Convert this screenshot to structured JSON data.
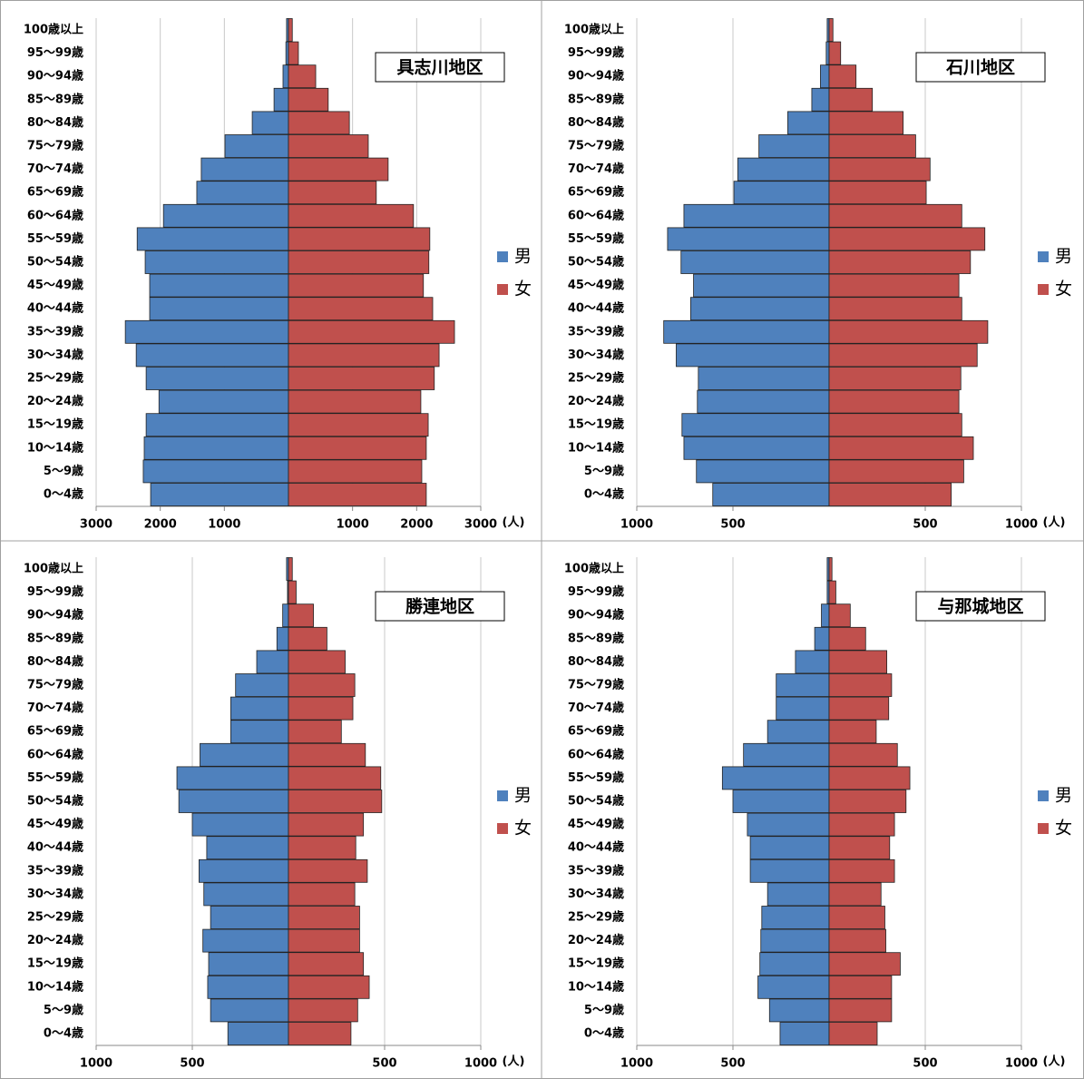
{
  "chart_data": [
    {
      "type": "pyramid",
      "title": "具志川地区",
      "categories": [
        "100歳以上",
        "95～99歳",
        "90～94歳",
        "85～89歳",
        "80～84歳",
        "75～79歳",
        "70～74歳",
        "65～69歳",
        "60～64歳",
        "55～59歳",
        "50～54歳",
        "45～49歳",
        "40～44歳",
        "35～39歳",
        "30～34歳",
        "25～29歳",
        "20～24歳",
        "15～19歳",
        "10～14歳",
        "5～9歳",
        "0～4歳"
      ],
      "series": [
        {
          "name": "男",
          "color": "#4f81bd",
          "values": [
            30,
            40,
            85,
            225,
            565,
            990,
            1360,
            1430,
            1950,
            2360,
            2235,
            2165,
            2165,
            2545,
            2375,
            2220,
            2020,
            2220,
            2250,
            2265,
            2150
          ]
        },
        {
          "name": "女",
          "color": "#c0504d",
          "values": [
            60,
            155,
            425,
            620,
            950,
            1245,
            1555,
            1370,
            1950,
            2205,
            2190,
            2105,
            2250,
            2590,
            2350,
            2275,
            2065,
            2180,
            2150,
            2080,
            2150
          ]
        }
      ],
      "xlim": [
        0,
        3000
      ],
      "xticks": [
        1000,
        2000,
        3000
      ],
      "xlabel": "(人)",
      "grid": true,
      "legend": "right"
    },
    {
      "type": "pyramid",
      "title": "石川地区",
      "categories": [
        "100歳以上",
        "95～99歳",
        "90～94歳",
        "85～89歳",
        "80～84歳",
        "75～79歳",
        "70～74歳",
        "65～69歳",
        "60～64歳",
        "55～59歳",
        "50～54歳",
        "45～49歳",
        "40～44歳",
        "35～39歳",
        "30～34歳",
        "25～29歳",
        "20～24歳",
        "15～19歳",
        "10～14歳",
        "5～9歳",
        "0～4歳"
      ],
      "series": [
        {
          "name": "男",
          "color": "#4f81bd",
          "values": [
            10,
            15,
            45,
            90,
            215,
            365,
            475,
            495,
            755,
            840,
            770,
            705,
            720,
            860,
            795,
            680,
            685,
            765,
            755,
            690,
            605
          ]
        },
        {
          "name": "女",
          "color": "#c0504d",
          "values": [
            20,
            60,
            140,
            225,
            385,
            450,
            525,
            505,
            690,
            810,
            735,
            675,
            690,
            825,
            770,
            685,
            675,
            690,
            750,
            700,
            635
          ]
        }
      ],
      "xlim": [
        0,
        1000
      ],
      "xticks": [
        500,
        1000
      ],
      "xlabel": "(人)",
      "grid": true,
      "legend": "right"
    },
    {
      "type": "pyramid",
      "title": "勝連地区",
      "categories": [
        "100歳以上",
        "95～99歳",
        "90～94歳",
        "85～89歳",
        "80～84歳",
        "75～79歳",
        "70～74歳",
        "65～69歳",
        "60～64歳",
        "55～59歳",
        "50～54歳",
        "45～49歳",
        "40～44歳",
        "35～39歳",
        "30～34歳",
        "25～29歳",
        "20～24歳",
        "15～19歳",
        "10～14歳",
        "5～9歳",
        "0～4歳"
      ],
      "series": [
        {
          "name": "男",
          "color": "#4f81bd",
          "values": [
            10,
            5,
            30,
            60,
            165,
            275,
            300,
            300,
            460,
            580,
            570,
            500,
            425,
            465,
            440,
            405,
            445,
            415,
            420,
            405,
            315
          ]
        },
        {
          "name": "女",
          "color": "#c0504d",
          "values": [
            20,
            40,
            130,
            200,
            295,
            345,
            335,
            275,
            400,
            480,
            485,
            390,
            350,
            410,
            345,
            370,
            370,
            390,
            420,
            360,
            325
          ]
        }
      ],
      "xlim": [
        0,
        1000
      ],
      "xticks": [
        500,
        1000
      ],
      "xlabel": "(人)",
      "grid": true,
      "legend": "right"
    },
    {
      "type": "pyramid",
      "title": "与那城地区",
      "categories": [
        "100歳以上",
        "95～99歳",
        "90～94歳",
        "85～89歳",
        "80～84歳",
        "75～79歳",
        "70～74歳",
        "65～69歳",
        "60～64歳",
        "55～59歳",
        "50～54歳",
        "45～49歳",
        "40～44歳",
        "35～39歳",
        "30～34歳",
        "25～29歳",
        "20～24歳",
        "15～19歳",
        "10～14歳",
        "5～9歳",
        "0～4歳"
      ],
      "series": [
        {
          "name": "男",
          "color": "#4f81bd",
          "values": [
            10,
            10,
            40,
            75,
            175,
            275,
            275,
            320,
            445,
            555,
            500,
            425,
            410,
            410,
            320,
            350,
            355,
            360,
            370,
            310,
            255
          ]
        },
        {
          "name": "女",
          "color": "#c0504d",
          "values": [
            15,
            35,
            110,
            190,
            300,
            325,
            310,
            245,
            355,
            420,
            400,
            340,
            315,
            340,
            270,
            290,
            295,
            370,
            325,
            325,
            250
          ]
        }
      ],
      "xlim": [
        0,
        1000
      ],
      "xticks": [
        500,
        1000
      ],
      "xlabel": "(人)",
      "grid": true,
      "legend": "right"
    }
  ]
}
